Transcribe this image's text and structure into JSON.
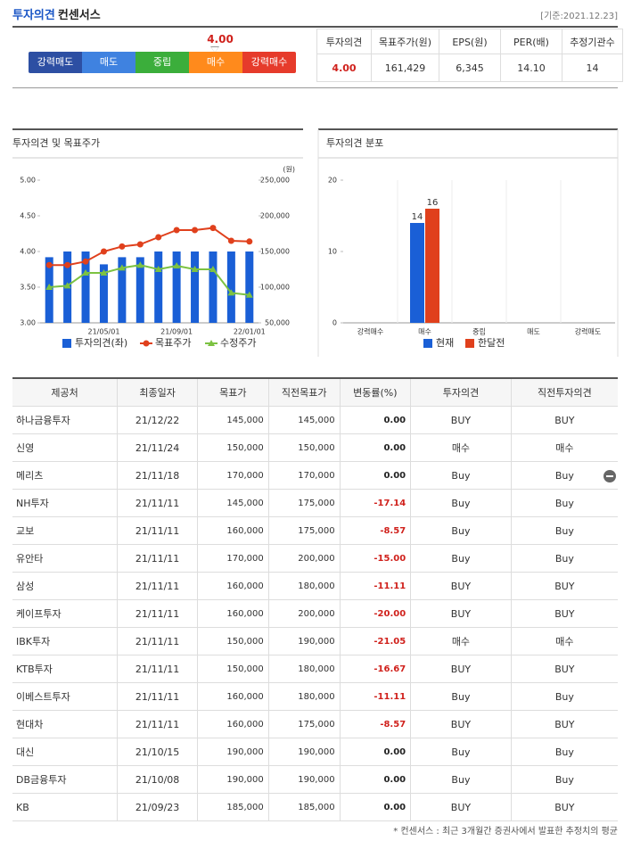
{
  "header": {
    "title": "투자의견",
    "subtitle": "컨센서스",
    "date": "[기준:2021.12.23]"
  },
  "scale": {
    "score": "4.00",
    "levels": [
      "강력매도",
      "매도",
      "중립",
      "매수",
      "강력매수"
    ],
    "colors": [
      "#2d4fa3",
      "#3f82e0",
      "#3bae3b",
      "#ff8a1c",
      "#e63b2b"
    ]
  },
  "summary": {
    "headers": [
      "투자의견",
      "목표주가(원)",
      "EPS(원)",
      "PER(배)",
      "추정기관수"
    ],
    "values": [
      "4.00",
      "161,429",
      "6,345",
      "14.10",
      "14"
    ]
  },
  "chart_data": [
    {
      "type": "combo",
      "title": "투자의견 및 목표주가",
      "categories": [
        null,
        null,
        null,
        "21/05/01",
        null,
        null,
        null,
        "21/09/01",
        null,
        null,
        null,
        "22/01/01"
      ],
      "ylim": [
        3,
        5
      ],
      "yticks": [
        {
          "value": 3,
          "label": "3.00"
        },
        {
          "value": 3.5,
          "label": "3.50"
        },
        {
          "value": 4,
          "label": "4.00"
        },
        {
          "value": 4.5,
          "label": "4.50"
        },
        {
          "value": 5,
          "label": "5.00"
        }
      ],
      "y2lim": [
        50000,
        250000
      ],
      "y2ticks": [
        {
          "value": 50000,
          "label": "50,000"
        },
        {
          "value": 100000,
          "label": "100,000"
        },
        {
          "value": 150000,
          "label": "150,000"
        },
        {
          "value": 200000,
          "label": "200,000"
        },
        {
          "value": 250000,
          "label": "250,000"
        }
      ],
      "y2_label": "(원)",
      "series": [
        {
          "name": "투자의견(좌)",
          "type": "bar",
          "color": "#1a5fd6",
          "values": [
            3.92,
            4.0,
            4.0,
            3.82,
            3.92,
            3.92,
            4.0,
            4.0,
            4.0,
            4.0,
            4.0,
            4.0
          ]
        },
        {
          "name": "목표주가",
          "type": "line",
          "axis": "y2",
          "marker": "circle",
          "color": "#e0401c",
          "values": [
            131000,
            131000,
            136000,
            150000,
            157000,
            160000,
            170000,
            180000,
            180000,
            183000,
            165000,
            164000
          ]
        },
        {
          "name": "수정주가",
          "type": "line",
          "axis": "y2",
          "marker": "triangle",
          "color": "#7cc242",
          "values": [
            100000,
            102000,
            120000,
            120000,
            127000,
            131000,
            125000,
            130000,
            125000,
            125000,
            92000,
            89000
          ]
        }
      ]
    },
    {
      "type": "bar",
      "title": "투자의견 분포",
      "categories": [
        "강력매수",
        "매수",
        "중립",
        "매도",
        "강력매도"
      ],
      "ylim": [
        0,
        20
      ],
      "yticks": [
        0,
        10,
        20
      ],
      "series": [
        {
          "name": "현재",
          "color": "#1a5fd6",
          "values": [
            0,
            14,
            0,
            0,
            0
          ]
        },
        {
          "name": "한달전",
          "color": "#e0401c",
          "values": [
            0,
            16,
            0,
            0,
            0
          ]
        }
      ]
    }
  ],
  "table": {
    "headers": [
      "제공처",
      "최종일자",
      "목표가",
      "직전목표가",
      "변동률(%)",
      "투자의견",
      "직전투자의견"
    ],
    "rows": [
      [
        "하나금융투자",
        "21/12/22",
        "145,000",
        "145,000",
        "0.00",
        "BUY",
        "BUY"
      ],
      [
        "신영",
        "21/11/24",
        "150,000",
        "150,000",
        "0.00",
        "매수",
        "매수"
      ],
      [
        "메리츠",
        "21/11/18",
        "170,000",
        "170,000",
        "0.00",
        "Buy",
        "Buy"
      ],
      [
        "NH투자",
        "21/11/11",
        "145,000",
        "175,000",
        "-17.14",
        "Buy",
        "Buy"
      ],
      [
        "교보",
        "21/11/11",
        "160,000",
        "175,000",
        "-8.57",
        "Buy",
        "Buy"
      ],
      [
        "유안타",
        "21/11/11",
        "170,000",
        "200,000",
        "-15.00",
        "Buy",
        "Buy"
      ],
      [
        "삼성",
        "21/11/11",
        "160,000",
        "180,000",
        "-11.11",
        "BUY",
        "BUY"
      ],
      [
        "케이프투자",
        "21/11/11",
        "160,000",
        "200,000",
        "-20.00",
        "BUY",
        "BUY"
      ],
      [
        "IBK투자",
        "21/11/11",
        "150,000",
        "190,000",
        "-21.05",
        "매수",
        "매수"
      ],
      [
        "KTB투자",
        "21/11/11",
        "150,000",
        "180,000",
        "-16.67",
        "BUY",
        "BUY"
      ],
      [
        "이베스트투자",
        "21/11/11",
        "160,000",
        "180,000",
        "-11.11",
        "Buy",
        "Buy"
      ],
      [
        "현대차",
        "21/11/11",
        "160,000",
        "175,000",
        "-8.57",
        "BUY",
        "BUY"
      ],
      [
        "대신",
        "21/10/15",
        "190,000",
        "190,000",
        "0.00",
        "Buy",
        "Buy"
      ],
      [
        "DB금융투자",
        "21/10/08",
        "190,000",
        "190,000",
        "0.00",
        "Buy",
        "Buy"
      ],
      [
        "KB",
        "21/09/23",
        "185,000",
        "185,000",
        "0.00",
        "BUY",
        "BUY"
      ]
    ]
  },
  "footnote": "* 컨센서스 : 최근 3개월간 증권사에서 발표한 추정치의 평균"
}
